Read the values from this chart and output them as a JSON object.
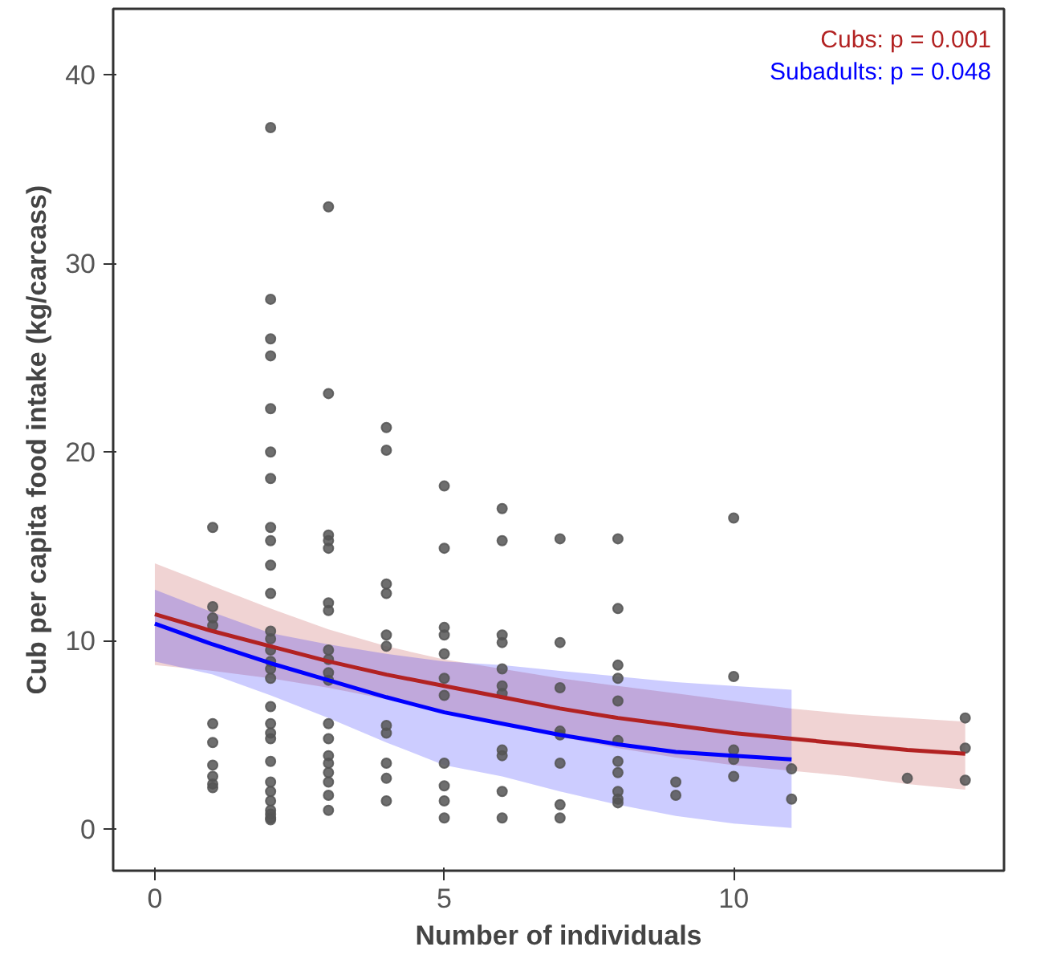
{
  "chart_data": {
    "type": "scatter",
    "xlabel": "Number of individuals",
    "ylabel": "Cub per capita food intake (kg/carcass)",
    "xlim": [
      -0.72,
      14.67
    ],
    "ylim": [
      -2.2,
      43.5
    ],
    "xticks": [
      0,
      5,
      10
    ],
    "yticks": [
      0,
      10,
      20,
      30,
      40
    ],
    "grid": false,
    "marker": "circle",
    "annotations": [
      "Cubs: p = 0.001",
      "Subadults: p = 0.048"
    ],
    "series": [
      {
        "color": "#555555",
        "x": [
          1,
          1,
          1,
          1,
          1,
          1,
          1,
          1,
          1,
          1,
          2,
          2,
          2,
          2,
          2,
          2,
          2,
          2,
          2,
          2,
          2,
          2,
          2,
          2,
          2,
          2,
          2,
          2,
          2,
          2,
          2,
          2,
          2,
          2,
          2,
          2,
          2,
          2,
          2,
          3,
          3,
          3,
          3,
          3,
          3,
          3,
          3,
          3,
          3,
          3,
          3,
          3,
          3,
          3,
          3,
          3,
          3,
          3,
          4,
          4,
          4,
          4,
          4,
          4,
          4,
          4,
          4,
          4,
          4,
          5,
          5,
          5,
          5,
          5,
          5,
          5,
          5,
          5,
          5,
          5,
          6,
          6,
          6,
          6,
          6,
          6,
          6,
          6,
          6,
          6,
          6,
          7,
          7,
          7,
          7,
          7,
          7,
          7,
          7,
          8,
          8,
          8,
          8,
          8,
          8,
          8,
          8,
          8,
          8,
          8,
          9,
          9,
          10,
          10,
          10,
          10,
          10,
          11,
          11,
          13,
          14,
          14,
          14
        ],
        "values": [
          16.0,
          11.8,
          11.2,
          10.8,
          5.6,
          4.6,
          3.4,
          2.8,
          2.4,
          2.2,
          37.2,
          28.1,
          26.0,
          25.1,
          22.3,
          20.0,
          18.6,
          16.0,
          15.3,
          14.0,
          12.5,
          10.5,
          10.1,
          9.5,
          8.9,
          8.5,
          8.0,
          6.5,
          5.6,
          5.1,
          4.8,
          3.6,
          2.5,
          2.0,
          1.5,
          1.0,
          0.8,
          0.6,
          0.5,
          33.0,
          23.1,
          15.6,
          15.3,
          14.9,
          12.0,
          11.6,
          9.5,
          9.0,
          8.3,
          7.9,
          5.6,
          4.8,
          3.9,
          3.5,
          3.0,
          2.5,
          1.8,
          1.0,
          21.3,
          20.1,
          13.0,
          12.5,
          10.3,
          9.7,
          5.5,
          5.1,
          3.5,
          2.7,
          1.5,
          18.2,
          14.9,
          10.7,
          10.3,
          9.3,
          8.0,
          7.1,
          3.5,
          2.3,
          1.5,
          0.6,
          17.0,
          15.3,
          10.3,
          9.9,
          8.5,
          7.6,
          7.2,
          4.2,
          3.9,
          2.0,
          0.6,
          15.4,
          9.9,
          7.5,
          5.2,
          5.0,
          3.5,
          1.3,
          0.6,
          15.4,
          11.7,
          8.7,
          8.0,
          6.8,
          4.7,
          3.6,
          3.0,
          2.0,
          1.6,
          1.4,
          2.5,
          1.8,
          16.5,
          8.1,
          4.2,
          3.7,
          2.8,
          3.2,
          1.6,
          2.7,
          5.9,
          4.3,
          2.6
        ]
      },
      {
        "type": "line",
        "marker": "none",
        "color": "#b22222",
        "x": [
          0,
          1,
          2,
          3,
          4,
          5,
          6,
          7,
          8,
          9,
          10,
          11,
          12,
          13,
          14
        ],
        "values": [
          11.4,
          10.5,
          9.7,
          8.9,
          8.2,
          7.6,
          7.0,
          6.4,
          5.9,
          5.5,
          5.1,
          4.8,
          4.5,
          4.2,
          4.0
        ],
        "lower": [
          8.7,
          8.4,
          8.0,
          7.5,
          6.9,
          6.3,
          5.6,
          4.9,
          4.3,
          3.8,
          3.4,
          3.1,
          2.8,
          2.4,
          2.1
        ],
        "upper": [
          14.1,
          12.9,
          11.7,
          10.6,
          9.7,
          9.0,
          8.5,
          8.0,
          7.6,
          7.2,
          6.8,
          6.4,
          6.1,
          5.9,
          5.7
        ]
      },
      {
        "type": "line",
        "marker": "none",
        "color": "#0000ff",
        "x": [
          0,
          1,
          2,
          3,
          4,
          5,
          6,
          7,
          8,
          9,
          10,
          11
        ],
        "values": [
          10.9,
          9.8,
          8.8,
          7.9,
          7.0,
          6.2,
          5.6,
          5.0,
          4.5,
          4.1,
          3.9,
          3.7
        ],
        "lower": [
          8.9,
          8.2,
          7.1,
          5.9,
          4.6,
          3.4,
          2.8,
          2.0,
          1.3,
          0.7,
          0.3,
          0.07
        ],
        "upper": [
          12.7,
          11.5,
          10.4,
          9.8,
          9.3,
          8.9,
          8.7,
          8.4,
          8.1,
          7.8,
          7.6,
          7.4
        ]
      }
    ]
  }
}
